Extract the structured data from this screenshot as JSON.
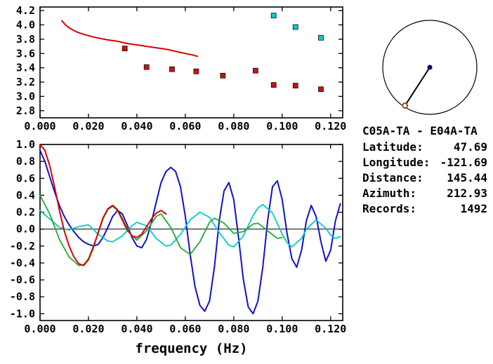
{
  "info_panel": {
    "title": "C05A-TA - E04A-TA",
    "rows": [
      {
        "label": "Latitude:",
        "value": "47.69"
      },
      {
        "label": "Longitude:",
        "value": "-121.69"
      },
      {
        "label": "Distance:",
        "value": "145.44"
      },
      {
        "label": "Azimuth:",
        "value": "212.93"
      },
      {
        "label": "Records:",
        "value": "1492"
      }
    ]
  },
  "colors": {
    "red": "#dd0000",
    "green": "#22aa33",
    "blue": "#1111cc",
    "cyan": "#00cccc",
    "axis": "#000000",
    "center_dot": "#00008b",
    "end_marker": "#8b4513"
  },
  "chart_data": [
    {
      "id": "dispersion",
      "type": "line",
      "title": "",
      "xlabel": "",
      "ylabel": "",
      "xlim": [
        0,
        0.125
      ],
      "ylim": [
        2.7,
        4.25
      ],
      "grid": false,
      "xticks": [
        0,
        0.02,
        0.04,
        0.06,
        0.08,
        0.1,
        0.12
      ],
      "xtick_labels": [
        "0.000",
        "0.020",
        "0.040",
        "0.060",
        "0.080",
        "0.100",
        "0.120"
      ],
      "yticks": [
        2.8,
        3.0,
        3.2,
        3.4,
        3.6,
        3.8,
        4.0,
        4.2
      ],
      "ytick_labels": [
        "2.8",
        "3.0",
        "3.2",
        "3.4",
        "3.6",
        "3.8",
        "4.0",
        "4.2"
      ],
      "series": [
        {
          "name": "reference-velocity-curve",
          "kind": "line",
          "color": "#dd0000",
          "width": 2,
          "points": [
            [
              0.009,
              4.06
            ],
            [
              0.0105,
              4.0
            ],
            [
              0.012,
              3.96
            ],
            [
              0.014,
              3.92
            ],
            [
              0.016,
              3.89
            ],
            [
              0.019,
              3.86
            ],
            [
              0.022,
              3.83
            ],
            [
              0.025,
              3.81
            ],
            [
              0.028,
              3.79
            ],
            [
              0.032,
              3.77
            ],
            [
              0.036,
              3.74
            ],
            [
              0.04,
              3.72
            ],
            [
              0.044,
              3.7
            ],
            [
              0.048,
              3.68
            ],
            [
              0.052,
              3.66
            ],
            [
              0.056,
              3.63
            ],
            [
              0.06,
              3.6
            ],
            [
              0.063,
              3.58
            ],
            [
              0.065,
              3.56
            ]
          ]
        },
        {
          "name": "red-dispersion-points",
          "kind": "scatter-square",
          "color": "#cc1111",
          "points": [
            [
              0.035,
              3.67
            ],
            [
              0.044,
              3.41
            ],
            [
              0.0545,
              3.38
            ],
            [
              0.0645,
              3.35
            ],
            [
              0.0755,
              3.29
            ],
            [
              0.089,
              3.36
            ],
            [
              0.0965,
              3.16
            ],
            [
              0.1055,
              3.15
            ],
            [
              0.116,
              3.1
            ]
          ]
        },
        {
          "name": "cyan-dispersion-points",
          "kind": "scatter-square",
          "color": "#00cccc",
          "points": [
            [
              0.0965,
              4.13
            ],
            [
              0.1055,
              3.97
            ],
            [
              0.116,
              3.82
            ]
          ]
        }
      ]
    },
    {
      "id": "correlation-functions",
      "type": "line",
      "title": "",
      "xlabel": "frequency (Hz)",
      "ylabel": "",
      "xlim": [
        0,
        0.125
      ],
      "ylim": [
        -1.08,
        1.0
      ],
      "grid": false,
      "zero_line": true,
      "xticks": [
        0,
        0.02,
        0.04,
        0.06,
        0.08,
        0.1,
        0.12
      ],
      "xtick_labels": [
        "0.000",
        "0.020",
        "0.040",
        "0.060",
        "0.080",
        "0.100",
        "0.120"
      ],
      "yticks": [
        1.0,
        0.8,
        0.6,
        0.4,
        0.2,
        0.0,
        -0.2,
        -0.4,
        -0.6,
        -0.8,
        -1.0
      ],
      "ytick_labels": [
        "1.0",
        "0.8",
        "0.6",
        "0.4",
        "0.2",
        "0.0",
        "-0.2",
        "-0.4",
        "-0.6",
        "-0.8",
        "-1.0"
      ],
      "series": [
        {
          "name": "series-blue",
          "kind": "line",
          "color": "#1111cc",
          "width": 2,
          "points": [
            [
              0,
              0.93
            ],
            [
              0.002,
              0.8
            ],
            [
              0.004,
              0.62
            ],
            [
              0.006,
              0.44
            ],
            [
              0.008,
              0.28
            ],
            [
              0.01,
              0.15
            ],
            [
              0.012,
              0.05
            ],
            [
              0.014,
              -0.03
            ],
            [
              0.016,
              -0.1
            ],
            [
              0.018,
              -0.15
            ],
            [
              0.02,
              -0.18
            ],
            [
              0.022,
              -0.2
            ],
            [
              0.024,
              -0.18
            ],
            [
              0.026,
              -0.1
            ],
            [
              0.028,
              0.02
            ],
            [
              0.03,
              0.15
            ],
            [
              0.032,
              0.22
            ],
            [
              0.034,
              0.18
            ],
            [
              0.036,
              0.05
            ],
            [
              0.038,
              -0.1
            ],
            [
              0.04,
              -0.2
            ],
            [
              0.042,
              -0.22
            ],
            [
              0.044,
              -0.12
            ],
            [
              0.046,
              0.08
            ],
            [
              0.048,
              0.32
            ],
            [
              0.05,
              0.55
            ],
            [
              0.052,
              0.68
            ],
            [
              0.054,
              0.73
            ],
            [
              0.056,
              0.68
            ],
            [
              0.058,
              0.5
            ],
            [
              0.06,
              0.15
            ],
            [
              0.062,
              -0.3
            ],
            [
              0.064,
              -0.68
            ],
            [
              0.066,
              -0.9
            ],
            [
              0.068,
              -0.97
            ],
            [
              0.07,
              -0.85
            ],
            [
              0.072,
              -0.45
            ],
            [
              0.074,
              0.1
            ],
            [
              0.076,
              0.45
            ],
            [
              0.078,
              0.55
            ],
            [
              0.08,
              0.35
            ],
            [
              0.082,
              -0.1
            ],
            [
              0.084,
              -0.6
            ],
            [
              0.086,
              -0.92
            ],
            [
              0.088,
              -1.0
            ],
            [
              0.09,
              -0.85
            ],
            [
              0.092,
              -0.45
            ],
            [
              0.094,
              0.1
            ],
            [
              0.096,
              0.5
            ],
            [
              0.098,
              0.57
            ],
            [
              0.1,
              0.35
            ],
            [
              0.102,
              -0.05
            ],
            [
              0.104,
              -0.35
            ],
            [
              0.106,
              -0.45
            ],
            [
              0.108,
              -0.25
            ],
            [
              0.11,
              0.1
            ],
            [
              0.112,
              0.28
            ],
            [
              0.114,
              0.15
            ],
            [
              0.116,
              -0.15
            ],
            [
              0.118,
              -0.38
            ],
            [
              0.12,
              -0.25
            ],
            [
              0.122,
              0.1
            ],
            [
              0.124,
              0.3
            ]
          ]
        },
        {
          "name": "series-cyan",
          "kind": "line",
          "color": "#00cccc",
          "width": 1.8,
          "points": [
            [
              0,
              0.22
            ],
            [
              0.004,
              0.12
            ],
            [
              0.008,
              0.02
            ],
            [
              0.012,
              -0.01
            ],
            [
              0.016,
              0.03
            ],
            [
              0.02,
              0.05
            ],
            [
              0.024,
              -0.06
            ],
            [
              0.028,
              -0.14
            ],
            [
              0.03,
              -0.15
            ],
            [
              0.034,
              -0.08
            ],
            [
              0.038,
              0.04
            ],
            [
              0.04,
              0.08
            ],
            [
              0.044,
              0.04
            ],
            [
              0.048,
              -0.11
            ],
            [
              0.052,
              -0.2
            ],
            [
              0.054,
              -0.19
            ],
            [
              0.058,
              -0.06
            ],
            [
              0.062,
              0.11
            ],
            [
              0.066,
              0.2
            ],
            [
              0.07,
              0.14
            ],
            [
              0.074,
              -0.04
            ],
            [
              0.078,
              -0.19
            ],
            [
              0.08,
              -0.21
            ],
            [
              0.084,
              -0.08
            ],
            [
              0.088,
              0.16
            ],
            [
              0.09,
              0.25
            ],
            [
              0.092,
              0.29
            ],
            [
              0.096,
              0.19
            ],
            [
              0.1,
              -0.06
            ],
            [
              0.102,
              -0.16
            ],
            [
              0.104,
              -0.21
            ],
            [
              0.108,
              -0.11
            ],
            [
              0.11,
              0.0
            ],
            [
              0.114,
              0.11
            ],
            [
              0.118,
              0.01
            ],
            [
              0.12,
              -0.07
            ],
            [
              0.122,
              -0.11
            ],
            [
              0.124,
              -0.09
            ]
          ]
        },
        {
          "name": "series-green",
          "kind": "line",
          "color": "#22aa33",
          "width": 1.8,
          "points": [
            [
              0,
              0.4
            ],
            [
              0.004,
              0.18
            ],
            [
              0.008,
              -0.12
            ],
            [
              0.012,
              -0.33
            ],
            [
              0.016,
              -0.43
            ],
            [
              0.018,
              -0.42
            ],
            [
              0.02,
              -0.35
            ],
            [
              0.024,
              -0.05
            ],
            [
              0.026,
              0.12
            ],
            [
              0.028,
              0.23
            ],
            [
              0.03,
              0.27
            ],
            [
              0.032,
              0.22
            ],
            [
              0.036,
              -0.02
            ],
            [
              0.04,
              -0.13
            ],
            [
              0.044,
              -0.02
            ],
            [
              0.048,
              0.15
            ],
            [
              0.05,
              0.18
            ],
            [
              0.054,
              0.02
            ],
            [
              0.058,
              -0.22
            ],
            [
              0.062,
              -0.3
            ],
            [
              0.066,
              -0.15
            ],
            [
              0.07,
              0.08
            ],
            [
              0.072,
              0.13
            ],
            [
              0.076,
              0.07
            ],
            [
              0.08,
              -0.05
            ],
            [
              0.084,
              -0.03
            ],
            [
              0.088,
              0.06
            ],
            [
              0.09,
              0.07
            ],
            [
              0.094,
              -0.02
            ],
            [
              0.098,
              -0.11
            ],
            [
              0.1,
              -0.1
            ]
          ]
        },
        {
          "name": "series-red",
          "kind": "line",
          "color": "#dd0000",
          "width": 2,
          "points": [
            [
              0,
              1.0
            ],
            [
              0.002,
              0.93
            ],
            [
              0.004,
              0.75
            ],
            [
              0.006,
              0.5
            ],
            [
              0.008,
              0.22
            ],
            [
              0.01,
              -0.02
            ],
            [
              0.012,
              -0.2
            ],
            [
              0.014,
              -0.33
            ],
            [
              0.016,
              -0.41
            ],
            [
              0.018,
              -0.43
            ],
            [
              0.02,
              -0.36
            ],
            [
              0.022,
              -0.22
            ],
            [
              0.024,
              -0.04
            ],
            [
              0.026,
              0.13
            ],
            [
              0.028,
              0.24
            ],
            [
              0.03,
              0.28
            ],
            [
              0.032,
              0.23
            ],
            [
              0.034,
              0.12
            ],
            [
              0.036,
              0.0
            ],
            [
              0.038,
              -0.08
            ],
            [
              0.04,
              -0.1
            ],
            [
              0.042,
              -0.06
            ],
            [
              0.044,
              0.03
            ],
            [
              0.046,
              0.12
            ],
            [
              0.048,
              0.19
            ],
            [
              0.05,
              0.22
            ],
            [
              0.052,
              0.18
            ]
          ]
        }
      ]
    },
    {
      "id": "station-azimuth",
      "type": "direction-circle",
      "azimuth_deg": 212.93,
      "center_dot_color": "#00008b",
      "end_marker_color": "#8b4513"
    }
  ]
}
